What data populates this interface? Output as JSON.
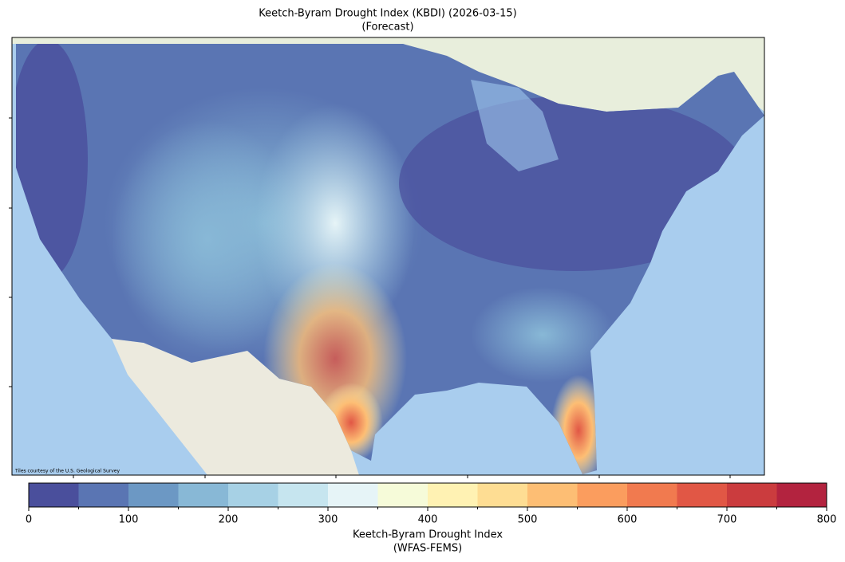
{
  "map": {
    "title": "Keetch-Byram Drought Index (KBDI) (2026-03-15)",
    "subtitle": "(Forecast)",
    "attribution": "Tiles courtesy of the U.S. Geological Survey"
  },
  "colorbar": {
    "label": "Keetch-Byram Drought Index",
    "sublabel": "(WFAS-FEMS)",
    "lim": [
      0,
      800
    ],
    "ticks": [
      0,
      100,
      200,
      300,
      400,
      500,
      600,
      700,
      800
    ],
    "bins": [
      0,
      50,
      100,
      150,
      200,
      250,
      300,
      350,
      400,
      450,
      500,
      550,
      600,
      650,
      700,
      750,
      800
    ],
    "colors": [
      "#4a4f9c",
      "#5a75b3",
      "#6c98c4",
      "#88b8d6",
      "#a7d1e5",
      "#c6e5ef",
      "#e6f4f7",
      "#f6fbd9",
      "#fff2b3",
      "#fedd93",
      "#fdbe74",
      "#fb9d5e",
      "#f17a4f",
      "#e15745",
      "#cb3c3e",
      "#b3233f"
    ]
  }
}
